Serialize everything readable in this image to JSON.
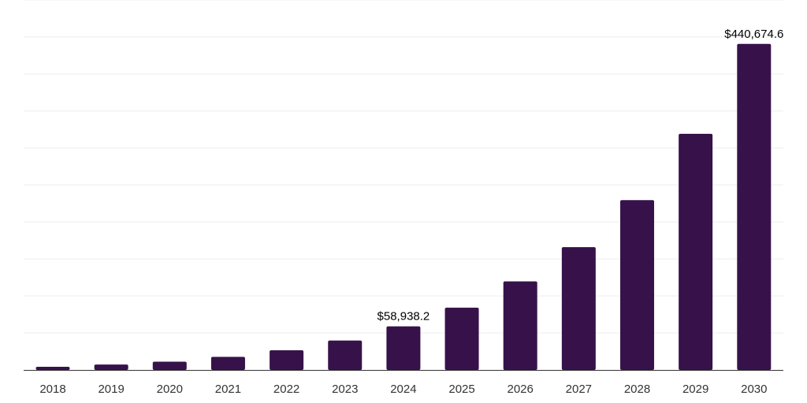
{
  "colors": {
    "bar": "#37124a"
  },
  "chart_data": {
    "type": "bar",
    "title": "",
    "xlabel": "",
    "ylabel": "",
    "categories": [
      "2018",
      "2019",
      "2020",
      "2021",
      "2022",
      "2023",
      "2024",
      "2025",
      "2026",
      "2027",
      "2028",
      "2029",
      "2030"
    ],
    "values": [
      4300,
      7300,
      11200,
      17700,
      26600,
      39700,
      58938.2,
      84200,
      119700,
      166000,
      229500,
      319200,
      440674.6
    ],
    "ylim": [
      0,
      500000
    ],
    "grid": true,
    "y_tick_labels_shown": false,
    "data_labels": [
      {
        "category": "2024",
        "text": "$58,938.2"
      },
      {
        "category": "2030",
        "text": "$440,674.6"
      }
    ]
  }
}
